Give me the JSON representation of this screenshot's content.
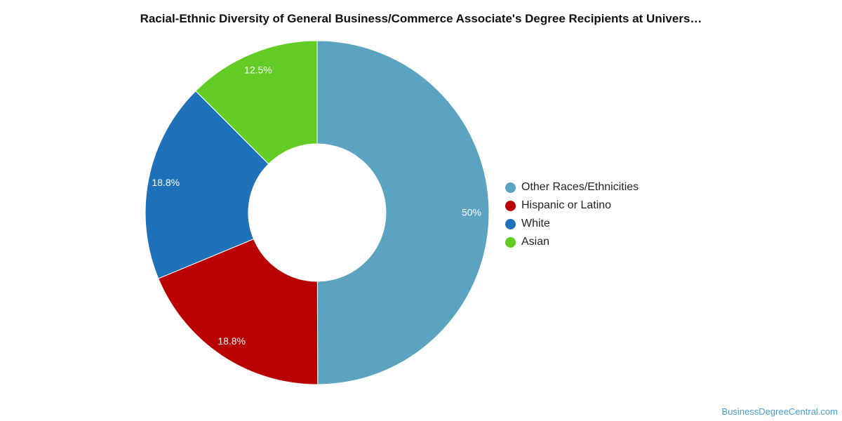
{
  "chart_data": {
    "type": "pie",
    "title": "Racial-Ethnic Diversity of General Business/Commerce Associate's Degree Recipients at Univers…",
    "donut": true,
    "legend_position": "right",
    "slices": [
      {
        "name": "Other Races/Ethnicities",
        "value": 50,
        "label": "50%",
        "color": "#5ba3c0"
      },
      {
        "name": "Hispanic or Latino",
        "value": 18.8,
        "label": "18.8%",
        "color": "#b80000"
      },
      {
        "name": "White",
        "value": 18.8,
        "label": "18.8%",
        "color": "#1f72b9"
      },
      {
        "name": "Asian",
        "value": 12.5,
        "label": "12.5%",
        "color": "#62cc24"
      }
    ]
  },
  "watermark": "BusinessDegreeCentral.com"
}
